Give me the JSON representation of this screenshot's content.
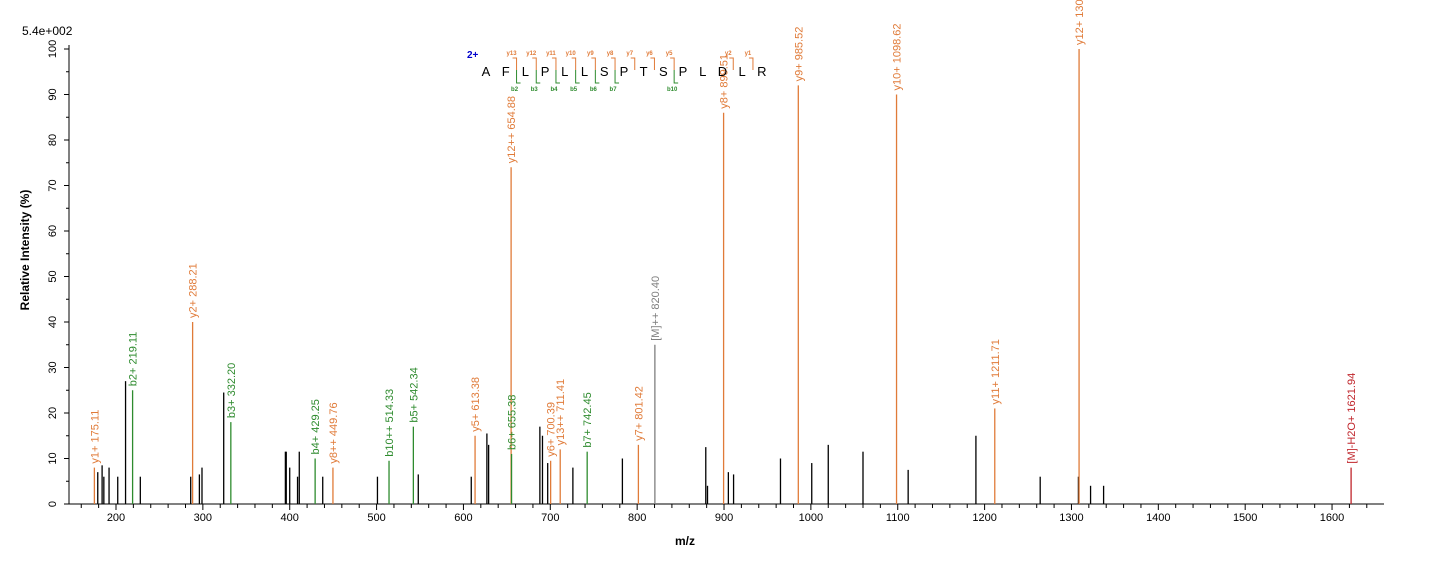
{
  "chart_data": {
    "type": "bar",
    "scale_label": "5.4e+002",
    "xlabel": "m/z",
    "ylabel": "Relative   Intensity (%)",
    "xlim": [
      150,
      1660
    ],
    "ylim": [
      0,
      100
    ],
    "x_ticks": [
      200,
      300,
      400,
      500,
      600,
      700,
      800,
      900,
      1000,
      1100,
      1200,
      1300,
      1400,
      1500,
      1600
    ],
    "y_ticks": [
      0,
      10,
      20,
      30,
      40,
      50,
      60,
      70,
      80,
      90,
      100
    ],
    "colors": {
      "y": "#e07b39",
      "b": "#2e8b2e",
      "precursor": "#7f7f7f",
      "loss": "#c0262c",
      "other": "#000000",
      "charge": "#0000cc"
    },
    "annotated_peaks": [
      {
        "mz": 175.11,
        "intensity": 8,
        "label": "y1+ 175.11",
        "ion": "y"
      },
      {
        "mz": 219.11,
        "intensity": 25,
        "label": "b2+ 219.11",
        "ion": "b"
      },
      {
        "mz": 288.21,
        "intensity": 40,
        "label": "y2+ 288.21",
        "ion": "y"
      },
      {
        "mz": 332.2,
        "intensity": 18,
        "label": "b3+ 332.20",
        "ion": "b"
      },
      {
        "mz": 429.25,
        "intensity": 10,
        "label": "b4+ 429.25",
        "ion": "b"
      },
      {
        "mz": 449.76,
        "intensity": 8,
        "label": "y8++ 449.76",
        "ion": "y"
      },
      {
        "mz": 514.33,
        "intensity": 9.5,
        "label": "b10++ 514.33",
        "ion": "b"
      },
      {
        "mz": 542.34,
        "intensity": 17,
        "label": "b5+ 542.34",
        "ion": "b"
      },
      {
        "mz": 613.38,
        "intensity": 15,
        "label": "y5+ 613.38",
        "ion": "y"
      },
      {
        "mz": 654.88,
        "intensity": 74,
        "label": "y12++ 654.88",
        "ion": "y"
      },
      {
        "mz": 655.38,
        "intensity": 11,
        "label": "b6+ 655.38",
        "ion": "b"
      },
      {
        "mz": 700.39,
        "intensity": 9.5,
        "label": "y6+ 700.39",
        "ion": "y"
      },
      {
        "mz": 711.41,
        "intensity": 12,
        "label": "y13++ 711.41",
        "ion": "y"
      },
      {
        "mz": 742.45,
        "intensity": 11.5,
        "label": "b7+ 742.45",
        "ion": "b"
      },
      {
        "mz": 801.42,
        "intensity": 13,
        "label": "y7+ 801.42",
        "ion": "y"
      },
      {
        "mz": 820.4,
        "intensity": 35,
        "label": "[M]++ 820.40",
        "ion": "precursor"
      },
      {
        "mz": 899.51,
        "intensity": 86,
        "label": "y8+ 899.51",
        "ion": "y"
      },
      {
        "mz": 985.52,
        "intensity": 92,
        "label": "y9+ 985.52",
        "ion": "y"
      },
      {
        "mz": 1098.62,
        "intensity": 90,
        "label": "y10+ 1098.62",
        "ion": "y"
      },
      {
        "mz": 1211.71,
        "intensity": 21,
        "label": "y11+ 1211.71",
        "ion": "y"
      },
      {
        "mz": 1308.76,
        "intensity": 100,
        "label": "y12+ 1308.76",
        "ion": "y"
      },
      {
        "mz": 1621.94,
        "intensity": 8,
        "label": "[M]-H2O+ 1621.94",
        "ion": "loss"
      }
    ],
    "other_peaks": [
      {
        "mz": 179,
        "intensity": 7
      },
      {
        "mz": 184,
        "intensity": 8.5
      },
      {
        "mz": 186,
        "intensity": 6
      },
      {
        "mz": 192,
        "intensity": 8
      },
      {
        "mz": 202,
        "intensity": 6
      },
      {
        "mz": 211,
        "intensity": 27
      },
      {
        "mz": 228,
        "intensity": 6
      },
      {
        "mz": 286,
        "intensity": 6
      },
      {
        "mz": 296,
        "intensity": 6.5
      },
      {
        "mz": 299,
        "intensity": 8
      },
      {
        "mz": 324,
        "intensity": 24.5
      },
      {
        "mz": 395,
        "intensity": 11.5
      },
      {
        "mz": 396,
        "intensity": 11.5
      },
      {
        "mz": 400,
        "intensity": 8
      },
      {
        "mz": 409,
        "intensity": 6
      },
      {
        "mz": 411,
        "intensity": 11.5
      },
      {
        "mz": 438,
        "intensity": 6
      },
      {
        "mz": 501,
        "intensity": 6
      },
      {
        "mz": 548,
        "intensity": 6.5
      },
      {
        "mz": 609,
        "intensity": 6
      },
      {
        "mz": 627,
        "intensity": 15.5
      },
      {
        "mz": 629,
        "intensity": 13
      },
      {
        "mz": 688,
        "intensity": 17
      },
      {
        "mz": 691,
        "intensity": 15
      },
      {
        "mz": 697,
        "intensity": 9
      },
      {
        "mz": 726,
        "intensity": 8
      },
      {
        "mz": 783,
        "intensity": 10
      },
      {
        "mz": 879,
        "intensity": 12.5
      },
      {
        "mz": 881,
        "intensity": 4
      },
      {
        "mz": 905,
        "intensity": 7
      },
      {
        "mz": 911,
        "intensity": 6.5
      },
      {
        "mz": 965,
        "intensity": 10
      },
      {
        "mz": 1001,
        "intensity": 9
      },
      {
        "mz": 1020,
        "intensity": 13
      },
      {
        "mz": 1060,
        "intensity": 11.5
      },
      {
        "mz": 1112,
        "intensity": 7.5
      },
      {
        "mz": 1190,
        "intensity": 15
      },
      {
        "mz": 1264,
        "intensity": 6
      },
      {
        "mz": 1308,
        "intensity": 6
      },
      {
        "mz": 1322,
        "intensity": 4
      },
      {
        "mz": 1337,
        "intensity": 4
      }
    ],
    "sequence": {
      "charge": "2+",
      "residues": [
        "A",
        "F",
        "L",
        "P",
        "L",
        "L",
        "S",
        "P",
        "T",
        "S",
        "P",
        "L",
        "D",
        "L",
        "R"
      ],
      "y_ions": [
        {
          "after": 2,
          "label": "y13"
        },
        {
          "after": 3,
          "label": "y12"
        },
        {
          "after": 4,
          "label": "y11"
        },
        {
          "after": 5,
          "label": "y10"
        },
        {
          "after": 6,
          "label": "y9"
        },
        {
          "after": 7,
          "label": "y8"
        },
        {
          "after": 8,
          "label": "y7"
        },
        {
          "after": 9,
          "label": "y6"
        },
        {
          "after": 10,
          "label": "y5"
        },
        {
          "after": 13,
          "label": "y2"
        },
        {
          "after": 14,
          "label": "y1"
        }
      ],
      "b_ions": [
        {
          "after": 2,
          "label": "b2"
        },
        {
          "after": 3,
          "label": "b3"
        },
        {
          "after": 4,
          "label": "b4"
        },
        {
          "after": 5,
          "label": "b5"
        },
        {
          "after": 6,
          "label": "b6"
        },
        {
          "after": 7,
          "label": "b7"
        },
        {
          "after": 10,
          "label": "b10"
        }
      ]
    }
  }
}
